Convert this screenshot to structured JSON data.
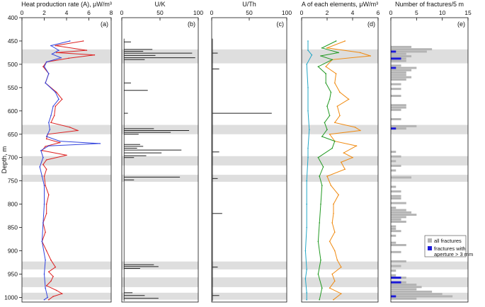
{
  "chart_data": {
    "type": "line",
    "ylabel": "Depth, m",
    "ylim": [
      400,
      1010
    ],
    "yticks": [
      400,
      450,
      500,
      550,
      600,
      650,
      700,
      750,
      800,
      850,
      900,
      950,
      1000
    ],
    "highlight_bands": [
      [
        468,
        498
      ],
      [
        630,
        650
      ],
      [
        697,
        717
      ],
      [
        737,
        752
      ],
      [
        923,
        940
      ],
      [
        957,
        978
      ],
      [
        990,
        1005
      ]
    ],
    "panels": [
      {
        "id": "a",
        "title": "Heat production rate (A), μW/m³",
        "label": "(a)",
        "xlim": [
          0,
          8
        ],
        "xticks": [
          0,
          2,
          4,
          6,
          8
        ],
        "series": [
          {
            "name": "",
            "color": "#dd2222",
            "depth": [
              450,
              460,
              470,
              475,
              480,
              487,
              495,
              505,
              520,
              540,
              560,
              575,
              590,
              610,
              625,
              635,
              642,
              650,
              660,
              668,
              676,
              685,
              695,
              705,
              715,
              725,
              740,
              760,
              780,
              800,
              820,
              840,
              860,
              880,
              900,
              920,
              935,
              945,
              955,
              965,
              975,
              985,
              992,
              998,
              1005
            ],
            "values": [
              5.5,
              3.0,
              5.8,
              3.1,
              6.5,
              4.2,
              2.2,
              1.9,
              2.4,
              2.1,
              3.1,
              3.6,
              3.0,
              2.9,
              2.6,
              4.3,
              5.0,
              2.3,
              2.2,
              3.4,
              2.1,
              1.8,
              4.0,
              2.2,
              1.9,
              2.2,
              2.0,
              2.1,
              2.4,
              2.2,
              2.2,
              1.9,
              2.1,
              1.8,
              2.2,
              2.6,
              3.0,
              2.4,
              2.8,
              2.6,
              2.2,
              3.1,
              3.6,
              2.8,
              2.4
            ]
          },
          {
            "name": "",
            "color": "#3344dd",
            "depth": [
              450,
              460,
              470,
              478,
              486,
              495,
              505,
              520,
              540,
              560,
              575,
              590,
              610,
              625,
              640,
              655,
              665,
              670,
              675,
              685,
              700,
              720,
              740,
              760,
              800,
              840,
              880,
              920,
              950,
              980,
              1000,
              1005
            ],
            "values": [
              4.3,
              2.6,
              3.3,
              2.7,
              3.5,
              2.2,
              2.0,
              2.4,
              2.1,
              3.0,
              3.3,
              2.8,
              2.6,
              2.4,
              2.5,
              2.2,
              3.4,
              7.0,
              2.4,
              1.7,
              1.9,
              1.6,
              1.8,
              2.0,
              2.0,
              1.9,
              1.8,
              2.1,
              2.0,
              2.1,
              2.3,
              2.0
            ]
          }
        ]
      },
      {
        "id": "b",
        "title": "U/K",
        "label": "(b)",
        "xlim": [
          0,
          100
        ],
        "xticks": [
          0,
          50,
          100
        ],
        "series": [
          {
            "name": "",
            "color": "#222222",
            "baseline": 3,
            "spikes": [
              [
                452,
                12
              ],
              [
                468,
                40
              ],
              [
                472,
                28
              ],
              [
                476,
                92
              ],
              [
                481,
                44
              ],
              [
                486,
                96
              ],
              [
                490,
                30
              ],
              [
                540,
                12
              ],
              [
                556,
                34
              ],
              [
                605,
                8
              ],
              [
                638,
                42
              ],
              [
                642,
                88
              ],
              [
                646,
                64
              ],
              [
                650,
                22
              ],
              [
                672,
                24
              ],
              [
                676,
                28
              ],
              [
                680,
                20
              ],
              [
                684,
                78
              ],
              [
                690,
                52
              ],
              [
                696,
                32
              ],
              [
                700,
                16
              ],
              [
                742,
                76
              ],
              [
                748,
                16
              ],
              [
                930,
                42
              ],
              [
                934,
                48
              ],
              [
                938,
                24
              ],
              [
                990,
                14
              ],
              [
                996,
                30
              ],
              [
                1002,
                48
              ]
            ]
          }
        ]
      },
      {
        "id": "c",
        "title": "U/Th",
        "label": "(c)",
        "xlim": [
          0,
          100
        ],
        "xticks": [
          0,
          50,
          100
        ],
        "series": [
          {
            "name": "",
            "color": "#222222",
            "baseline": 1,
            "spikes": [
              [
                476,
                8
              ],
              [
                510,
                10
              ],
              [
                605,
                80
              ],
              [
                688,
                10
              ],
              [
                745,
                8
              ],
              [
                820,
                14
              ],
              [
                935,
                8
              ],
              [
                996,
                10
              ]
            ]
          }
        ]
      },
      {
        "id": "d",
        "title": "A of each elements, μW/m³",
        "label": "(d)",
        "xlim": [
          0,
          6
        ],
        "xticks": [
          0,
          2,
          4,
          6
        ],
        "series": [
          {
            "name": "",
            "color": "#f08a10",
            "depth": [
              450,
              465,
              475,
              482,
              490,
              505,
              520,
              540,
              560,
              575,
              590,
              610,
              625,
              635,
              642,
              650,
              665,
              675,
              690,
              700,
              710,
              725,
              740,
              760,
              780,
              800,
              820,
              840,
              860,
              880,
              900,
              920,
              935,
              950,
              965,
              980,
              992,
              1005
            ],
            "values": [
              3.4,
              2.0,
              4.6,
              5.4,
              2.4,
              1.9,
              2.7,
              2.6,
              3.0,
              3.7,
              2.8,
              3.0,
              2.6,
              4.2,
              4.6,
              2.2,
              2.6,
              4.3,
              3.3,
              4.0,
              3.1,
              3.4,
              2.0,
              2.3,
              2.9,
              2.5,
              2.5,
              2.4,
              2.6,
              2.2,
              2.6,
              2.8,
              3.1,
              2.4,
              2.6,
              2.2,
              3.1,
              2.5
            ]
          },
          {
            "name": "",
            "color": "#229922",
            "depth": [
              450,
              465,
              475,
              482,
              490,
              505,
              520,
              540,
              560,
              575,
              590,
              610,
              625,
              640,
              655,
              665,
              680,
              700,
              720,
              740,
              760,
              800,
              840,
              880,
              920,
              950,
              980,
              1005
            ],
            "values": [
              2.7,
              1.6,
              2.9,
              1.5,
              2.4,
              1.3,
              1.9,
              1.9,
              2.3,
              2.2,
              2.0,
              2.2,
              1.8,
              2.0,
              1.6,
              2.6,
              2.4,
              1.3,
              1.7,
              1.4,
              1.6,
              1.5,
              1.4,
              1.3,
              1.5,
              1.3,
              1.6,
              1.4
            ]
          },
          {
            "name": "",
            "color": "#22a6c6",
            "depth": [
              450,
              470,
              480,
              500,
              550,
              600,
              640,
              680,
              700,
              750,
              800,
              850,
              900,
              940,
              960,
              990,
              1005
            ],
            "values": [
              0.5,
              0.5,
              0.8,
              0.4,
              0.5,
              0.5,
              0.6,
              0.5,
              0.5,
              0.4,
              0.4,
              0.4,
              0.3,
              0.4,
              0.3,
              0.4,
              0.4
            ]
          }
        ]
      },
      {
        "id": "e",
        "title": "Number of fractures/5 m",
        "label": "(e)",
        "xlim": [
          0,
          15
        ],
        "xticks": [
          0,
          5,
          10,
          15
        ],
        "series": [
          {
            "name": "all fractures",
            "color": "#b4b4b4",
            "bins": [
              [
                465,
                4
              ],
              [
                470,
                8
              ],
              [
                475,
                7
              ],
              [
                480,
                3
              ],
              [
                485,
                4
              ],
              [
                490,
                3
              ],
              [
                495,
                3
              ],
              [
                505,
                2
              ],
              [
                510,
                5
              ],
              [
                515,
                4
              ],
              [
                520,
                3
              ],
              [
                525,
                3
              ],
              [
                530,
                4
              ],
              [
                535,
                3
              ],
              [
                545,
                2
              ],
              [
                555,
                2
              ],
              [
                570,
                2
              ],
              [
                590,
                3
              ],
              [
                595,
                3
              ],
              [
                600,
                2
              ],
              [
                620,
                2
              ],
              [
                635,
                5
              ],
              [
                640,
                3
              ],
              [
                690,
                1
              ],
              [
                700,
                2
              ],
              [
                710,
                1
              ],
              [
                720,
                2
              ],
              [
                730,
                1
              ],
              [
                745,
                4
              ],
              [
                765,
                1
              ],
              [
                775,
                2
              ],
              [
                785,
                2
              ],
              [
                790,
                2
              ],
              [
                800,
                3
              ],
              [
                810,
                1
              ],
              [
                815,
                3
              ],
              [
                820,
                4
              ],
              [
                825,
                5
              ],
              [
                830,
                3
              ],
              [
                835,
                2
              ],
              [
                840,
                3
              ],
              [
                850,
                1
              ],
              [
                855,
                1
              ],
              [
                860,
                2
              ],
              [
                870,
                1
              ],
              [
                885,
                1
              ],
              [
                890,
                3
              ],
              [
                905,
                2
              ],
              [
                925,
                3
              ],
              [
                935,
                2
              ],
              [
                945,
                1
              ],
              [
                955,
                1
              ],
              [
                960,
                3
              ],
              [
                970,
                3
              ],
              [
                975,
                5
              ],
              [
                980,
                6
              ],
              [
                985,
                5
              ],
              [
                990,
                8
              ],
              [
                995,
                10
              ],
              [
                1000,
                12
              ],
              [
                1005,
                5
              ]
            ]
          },
          {
            "name": "fractures with aperture > 3 mm",
            "color": "#1a18d8",
            "bins": [
              [
                475,
                1
              ],
              [
                490,
                2
              ],
              [
                510,
                1
              ],
              [
                640,
                1
              ],
              [
                960,
                2
              ],
              [
                970,
                2
              ],
              [
                1000,
                1
              ]
            ]
          }
        ]
      }
    ]
  }
}
